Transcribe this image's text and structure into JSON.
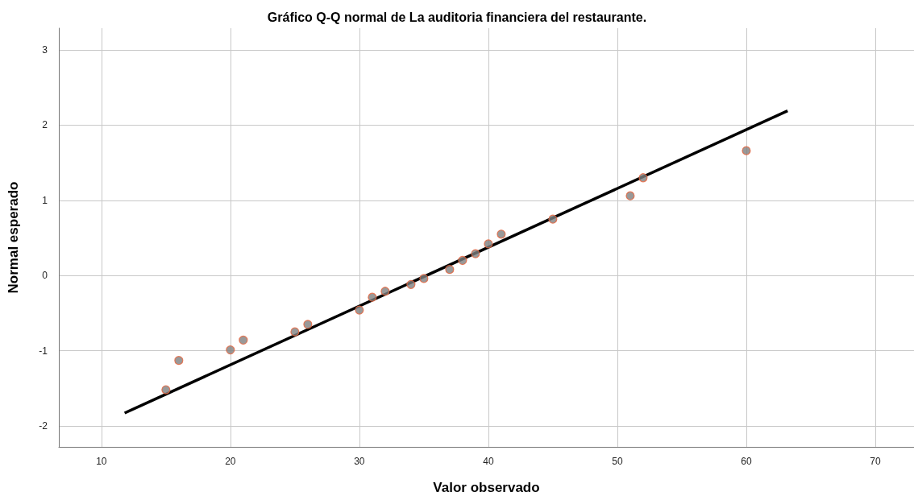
{
  "chart_data": {
    "type": "scatter",
    "title": "Gráfico Q-Q normal de La auditoria financiera del restaurante.",
    "xlabel": "Valor observado",
    "ylabel": "Normal esperado",
    "series": [
      {
        "color": "#7f7f7f",
        "marker": "circle",
        "x": [
          15,
          16,
          20,
          21,
          25,
          26,
          30,
          31,
          32,
          34,
          35,
          37,
          38,
          39,
          40,
          41,
          45,
          51,
          52,
          60
        ],
        "values": [
          -1.52,
          -1.13,
          -0.99,
          -0.86,
          -0.75,
          -0.65,
          -0.46,
          -0.29,
          -0.21,
          -0.12,
          -0.04,
          0.08,
          0.2,
          0.29,
          0.42,
          0.55,
          0.75,
          1.06,
          1.3,
          1.66
        ]
      },
      {
        "type": "line",
        "color": "#000000",
        "marker": "none",
        "line_style": "solid",
        "x": [
          11.8,
          63.2
        ],
        "values": [
          -1.83,
          2.19
        ]
      }
    ],
    "xlim": [
      6.7,
      73
    ],
    "xticks": [
      10,
      20,
      30,
      40,
      50,
      60,
      70
    ],
    "ylim": [
      -2.28,
      3.29
    ],
    "yticks": [
      -2,
      -1,
      0,
      1,
      2,
      3
    ],
    "grid": true
  }
}
